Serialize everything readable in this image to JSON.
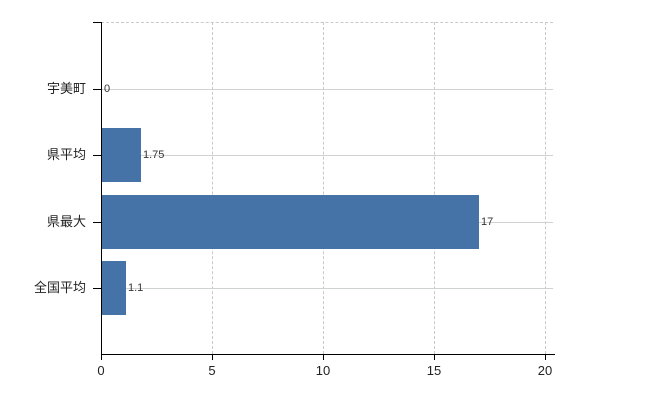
{
  "chart_data": {
    "type": "bar",
    "orientation": "horizontal",
    "title": "",
    "categories": [
      "宇美町",
      "県平均",
      "県最大",
      "全国平均"
    ],
    "values": [
      0,
      1.75,
      17,
      1.1
    ],
    "value_labels": [
      "0",
      "1.75",
      "17",
      "1.1"
    ],
    "x_ticks": [
      0,
      5,
      10,
      15,
      20
    ],
    "x_tick_labels": [
      "0",
      "5",
      "10",
      "15",
      "20"
    ],
    "xlim": [
      0,
      20.4
    ],
    "xlabel": "",
    "ylabel": "",
    "legend_position": "none",
    "grid": true,
    "colors": {
      "bar": "#4572a7",
      "grid": "#c9c9c9",
      "axis": "#000000",
      "category_label": "#222222",
      "value_label": "#333333",
      "background": "#ffffff"
    }
  }
}
